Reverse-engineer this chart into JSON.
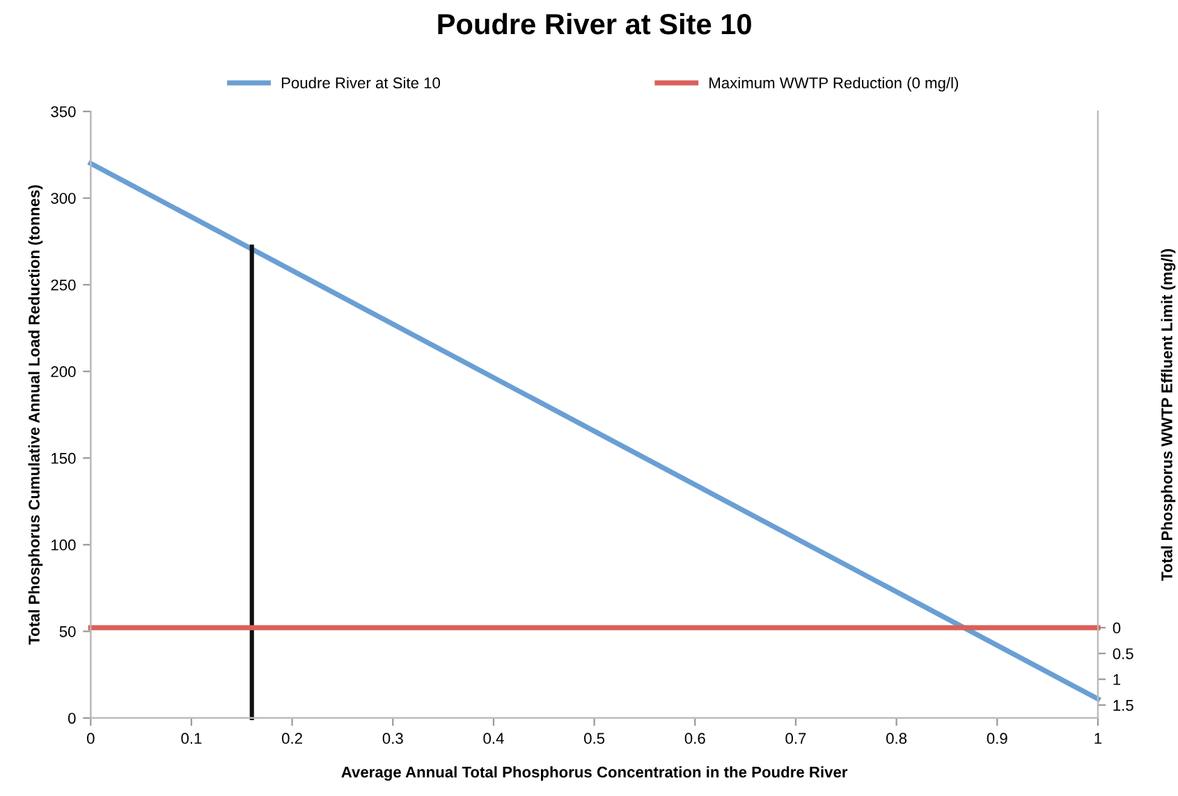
{
  "chart_data": {
    "type": "line",
    "title": "Poudre River at Site 10",
    "xlabel": "Average Annual Total Phosphorus Concentration in the Poudre River",
    "ylabel": "Total Phosphorus Cumulative Annual Load Reduction (tonnes)",
    "y2label": "Total Phosphorus WWTP Effluent Limit (mg/l)",
    "series": [
      {
        "name": "Poudre River at Site 10",
        "color": "#6a9fd4",
        "x": [
          0,
          1
        ],
        "values": [
          320,
          11
        ]
      },
      {
        "name": "Maximum WWTP Reduction (0 mg/l)",
        "color": "#d9605a",
        "x": [
          0,
          1
        ],
        "values": [
          0,
          0
        ],
        "axis": "y2"
      },
      {
        "color": "#111111",
        "x": [
          0.16,
          0.16
        ],
        "values": [
          0,
          272
        ]
      }
    ],
    "xlim": [
      0,
      1
    ],
    "xticks": [
      0,
      0.1,
      0.2,
      0.3,
      0.4,
      0.5,
      0.6,
      0.7,
      0.8,
      0.9,
      1
    ],
    "ylim": [
      0,
      350
    ],
    "yticks": [
      0,
      50,
      100,
      150,
      200,
      250,
      300,
      350
    ],
    "y2lim": [
      1.75,
      -10
    ],
    "y2ticks": [
      0,
      0.5,
      1,
      1.5
    ],
    "grid": false,
    "legend": "top"
  }
}
